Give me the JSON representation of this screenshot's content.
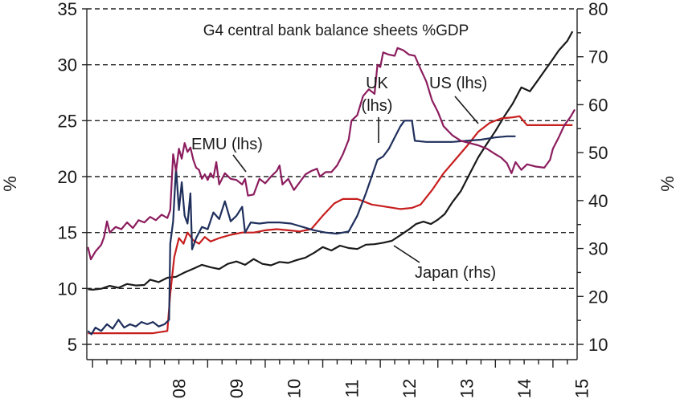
{
  "chart_data": {
    "type": "line",
    "title": "G4 central bank balance sheets %GDP",
    "ylabel_left": "%",
    "ylabel_right": "%",
    "ylim_left": [
      5,
      35
    ],
    "ylim_right": [
      10,
      80
    ],
    "yticks_left": [
      5,
      10,
      15,
      20,
      25,
      30,
      35
    ],
    "yticks_right": [
      10,
      20,
      30,
      40,
      50,
      60,
      70,
      80
    ],
    "ytick_labels_left": [
      "5",
      "10",
      "15",
      "20",
      "25",
      "30",
      "35"
    ],
    "ytick_labels_right": [
      "10",
      "20",
      "30",
      "40",
      "50",
      "60",
      "70",
      "80"
    ],
    "x_tick_labels": [
      {
        "label": "08",
        "x": 2008.0
      },
      {
        "label": "09",
        "x": 2009.0
      },
      {
        "label": "10",
        "x": 2010.0
      },
      {
        "label": "11",
        "x": 2011.0
      },
      {
        "label": "12",
        "x": 2012.0
      },
      {
        "label": "13",
        "x": 2013.0
      },
      {
        "label": "14",
        "x": 2014.0
      },
      {
        "label": "15",
        "x": 2015.0
      }
    ],
    "xlim": [
      2006.9,
      2015.42
    ],
    "grid": "horizontal dashed",
    "series": [
      {
        "name": "Japan (rhs)",
        "axis": "right",
        "color": "#1a1a1a",
        "points": [
          [
            2006.92,
            21.5
          ],
          [
            2007.0,
            21.4
          ],
          [
            2007.15,
            21.6
          ],
          [
            2007.3,
            22.2
          ],
          [
            2007.45,
            21.8
          ],
          [
            2007.6,
            22.6
          ],
          [
            2007.75,
            22.3
          ],
          [
            2007.9,
            22.4
          ],
          [
            2008.0,
            23.5
          ],
          [
            2008.15,
            23.0
          ],
          [
            2008.3,
            23.9
          ],
          [
            2008.45,
            24.1
          ],
          [
            2008.6,
            25.0
          ],
          [
            2008.75,
            25.8
          ],
          [
            2008.9,
            26.6
          ],
          [
            2009.05,
            26.1
          ],
          [
            2009.2,
            25.7
          ],
          [
            2009.35,
            26.8
          ],
          [
            2009.5,
            27.3
          ],
          [
            2009.65,
            26.6
          ],
          [
            2009.8,
            27.8
          ],
          [
            2009.95,
            26.8
          ],
          [
            2010.1,
            26.5
          ],
          [
            2010.25,
            27.2
          ],
          [
            2010.4,
            27.0
          ],
          [
            2010.55,
            27.6
          ],
          [
            2010.7,
            28.1
          ],
          [
            2010.85,
            29.1
          ],
          [
            2011.0,
            30.3
          ],
          [
            2011.15,
            29.6
          ],
          [
            2011.3,
            30.6
          ],
          [
            2011.45,
            30.1
          ],
          [
            2011.6,
            29.9
          ],
          [
            2011.75,
            30.8
          ],
          [
            2011.9,
            30.9
          ],
          [
            2012.05,
            31.2
          ],
          [
            2012.2,
            31.6
          ],
          [
            2012.35,
            32.8
          ],
          [
            2012.5,
            34.0
          ],
          [
            2012.62,
            35.1
          ],
          [
            2012.75,
            35.6
          ],
          [
            2012.88,
            35.1
          ],
          [
            2013.0,
            36.0
          ],
          [
            2013.12,
            37.2
          ],
          [
            2013.25,
            39.6
          ],
          [
            2013.4,
            42.0
          ],
          [
            2013.55,
            45.5
          ],
          [
            2013.7,
            49.0
          ],
          [
            2013.85,
            51.8
          ],
          [
            2014.0,
            54.5
          ],
          [
            2014.15,
            57.5
          ],
          [
            2014.3,
            60.2
          ],
          [
            2014.45,
            63.6
          ],
          [
            2014.6,
            62.8
          ],
          [
            2014.72,
            64.8
          ],
          [
            2014.85,
            67.0
          ],
          [
            2014.98,
            69.2
          ],
          [
            2015.1,
            71.3
          ],
          [
            2015.25,
            73.3
          ],
          [
            2015.34,
            75.3
          ]
        ]
      },
      {
        "name": "US (lhs)",
        "axis": "left",
        "color": "#c71e1e",
        "points": [
          [
            2006.92,
            6.0
          ],
          [
            2007.2,
            6.0
          ],
          [
            2007.5,
            6.0
          ],
          [
            2007.8,
            6.0
          ],
          [
            2008.05,
            6.0
          ],
          [
            2008.3,
            6.2
          ],
          [
            2008.35,
            9.5
          ],
          [
            2008.42,
            12.8
          ],
          [
            2008.5,
            14.5
          ],
          [
            2008.58,
            14.0
          ],
          [
            2008.65,
            15.0
          ],
          [
            2008.75,
            14.3
          ],
          [
            2008.85,
            14.0
          ],
          [
            2008.95,
            14.6
          ],
          [
            2009.05,
            14.2
          ],
          [
            2009.2,
            14.5
          ],
          [
            2009.4,
            14.8
          ],
          [
            2009.6,
            15.0
          ],
          [
            2009.8,
            15.0
          ],
          [
            2010.0,
            15.2
          ],
          [
            2010.2,
            15.3
          ],
          [
            2010.4,
            15.2
          ],
          [
            2010.6,
            15.1
          ],
          [
            2010.8,
            15.3
          ],
          [
            2011.0,
            16.5
          ],
          [
            2011.2,
            17.6
          ],
          [
            2011.35,
            18.0
          ],
          [
            2011.6,
            18.0
          ],
          [
            2011.85,
            17.5
          ],
          [
            2012.1,
            17.3
          ],
          [
            2012.35,
            17.1
          ],
          [
            2012.55,
            17.2
          ],
          [
            2012.7,
            17.5
          ],
          [
            2012.9,
            18.8
          ],
          [
            2013.1,
            20.3
          ],
          [
            2013.3,
            21.5
          ],
          [
            2013.5,
            22.7
          ],
          [
            2013.7,
            24.0
          ],
          [
            2013.9,
            24.8
          ],
          [
            2014.1,
            25.2
          ],
          [
            2014.3,
            25.3
          ],
          [
            2014.42,
            25.4
          ],
          [
            2014.55,
            24.6
          ],
          [
            2014.8,
            24.6
          ],
          [
            2015.05,
            24.6
          ],
          [
            2015.34,
            24.6
          ]
        ]
      },
      {
        "name": "UK (lhs)",
        "axis": "left",
        "color": "#1f2f5c",
        "points": [
          [
            2006.92,
            6.2
          ],
          [
            2006.98,
            5.9
          ],
          [
            2007.05,
            6.5
          ],
          [
            2007.15,
            6.2
          ],
          [
            2007.25,
            6.8
          ],
          [
            2007.35,
            6.4
          ],
          [
            2007.45,
            7.2
          ],
          [
            2007.55,
            6.5
          ],
          [
            2007.65,
            6.8
          ],
          [
            2007.75,
            6.6
          ],
          [
            2007.85,
            7.0
          ],
          [
            2007.95,
            6.8
          ],
          [
            2008.05,
            7.0
          ],
          [
            2008.15,
            6.6
          ],
          [
            2008.25,
            6.8
          ],
          [
            2008.33,
            7.2
          ],
          [
            2008.35,
            14.0
          ],
          [
            2008.4,
            16.0
          ],
          [
            2008.45,
            20.8
          ],
          [
            2008.5,
            17.0
          ],
          [
            2008.55,
            19.5
          ],
          [
            2008.6,
            16.5
          ],
          [
            2008.65,
            15.8
          ],
          [
            2008.7,
            18.5
          ],
          [
            2008.73,
            13.5
          ],
          [
            2008.8,
            14.5
          ],
          [
            2008.9,
            15.5
          ],
          [
            2009.0,
            15.3
          ],
          [
            2009.1,
            16.8
          ],
          [
            2009.2,
            16.2
          ],
          [
            2009.3,
            17.8
          ],
          [
            2009.4,
            16.0
          ],
          [
            2009.5,
            16.5
          ],
          [
            2009.6,
            17.3
          ],
          [
            2009.65,
            15.0
          ],
          [
            2009.75,
            15.9
          ],
          [
            2009.9,
            15.8
          ],
          [
            2010.05,
            15.9
          ],
          [
            2010.25,
            15.9
          ],
          [
            2010.45,
            15.8
          ],
          [
            2010.65,
            15.5
          ],
          [
            2010.85,
            15.2
          ],
          [
            2011.05,
            15.0
          ],
          [
            2011.25,
            14.9
          ],
          [
            2011.45,
            15.1
          ],
          [
            2011.6,
            16.5
          ],
          [
            2011.75,
            18.5
          ],
          [
            2011.85,
            20.0
          ],
          [
            2011.95,
            21.5
          ],
          [
            2012.05,
            21.8
          ],
          [
            2012.15,
            22.5
          ],
          [
            2012.25,
            23.5
          ],
          [
            2012.35,
            24.5
          ],
          [
            2012.42,
            25.0
          ],
          [
            2012.55,
            25.0
          ],
          [
            2012.6,
            23.2
          ],
          [
            2012.8,
            23.1
          ],
          [
            2013.0,
            23.1
          ],
          [
            2013.25,
            23.1
          ],
          [
            2013.5,
            23.2
          ],
          [
            2013.75,
            23.3
          ],
          [
            2014.0,
            23.5
          ],
          [
            2014.2,
            23.6
          ],
          [
            2014.35,
            23.6
          ]
        ]
      },
      {
        "name": "EMU (lhs)",
        "axis": "left",
        "color": "#8b1d5e",
        "points": [
          [
            2006.92,
            13.7
          ],
          [
            2006.97,
            12.6
          ],
          [
            2007.05,
            13.3
          ],
          [
            2007.15,
            13.9
          ],
          [
            2007.2,
            14.6
          ],
          [
            2007.25,
            16.0
          ],
          [
            2007.3,
            15.0
          ],
          [
            2007.4,
            15.5
          ],
          [
            2007.5,
            15.3
          ],
          [
            2007.6,
            15.9
          ],
          [
            2007.7,
            15.4
          ],
          [
            2007.8,
            16.1
          ],
          [
            2007.9,
            15.9
          ],
          [
            2008.0,
            16.4
          ],
          [
            2008.1,
            16.1
          ],
          [
            2008.2,
            16.6
          ],
          [
            2008.3,
            16.3
          ],
          [
            2008.35,
            17.0
          ],
          [
            2008.4,
            22.0
          ],
          [
            2008.45,
            20.5
          ],
          [
            2008.5,
            22.5
          ],
          [
            2008.55,
            21.6
          ],
          [
            2008.6,
            23.0
          ],
          [
            2008.65,
            22.2
          ],
          [
            2008.7,
            22.6
          ],
          [
            2008.75,
            21.5
          ],
          [
            2008.8,
            20.8
          ],
          [
            2008.85,
            20.6
          ],
          [
            2008.9,
            19.8
          ],
          [
            2008.95,
            20.2
          ],
          [
            2009.0,
            19.7
          ],
          [
            2009.05,
            20.3
          ],
          [
            2009.1,
            19.9
          ],
          [
            2009.15,
            21.3
          ],
          [
            2009.2,
            19.3
          ],
          [
            2009.3,
            20.3
          ],
          [
            2009.4,
            19.8
          ],
          [
            2009.5,
            19.7
          ],
          [
            2009.6,
            19.3
          ],
          [
            2009.65,
            19.8
          ],
          [
            2009.7,
            18.3
          ],
          [
            2009.8,
            18.4
          ],
          [
            2009.9,
            19.8
          ],
          [
            2010.0,
            19.4
          ],
          [
            2010.1,
            20.0
          ],
          [
            2010.2,
            20.5
          ],
          [
            2010.25,
            21.0
          ],
          [
            2010.3,
            19.3
          ],
          [
            2010.4,
            19.8
          ],
          [
            2010.5,
            18.8
          ],
          [
            2010.6,
            19.5
          ],
          [
            2010.7,
            20.2
          ],
          [
            2010.8,
            20.5
          ],
          [
            2010.9,
            20.7
          ],
          [
            2010.95,
            20.0
          ],
          [
            2011.05,
            20.4
          ],
          [
            2011.15,
            20.4
          ],
          [
            2011.25,
            21.0
          ],
          [
            2011.35,
            22.0
          ],
          [
            2011.45,
            23.3
          ],
          [
            2011.5,
            25.0
          ],
          [
            2011.6,
            25.5
          ],
          [
            2011.7,
            27.2
          ],
          [
            2011.8,
            27.8
          ],
          [
            2011.9,
            27.4
          ],
          [
            2011.95,
            30.0
          ],
          [
            2012.0,
            29.8
          ],
          [
            2012.05,
            31.1
          ],
          [
            2012.15,
            30.9
          ],
          [
            2012.25,
            30.8
          ],
          [
            2012.3,
            31.5
          ],
          [
            2012.4,
            31.3
          ],
          [
            2012.5,
            30.9
          ],
          [
            2012.6,
            30.8
          ],
          [
            2012.7,
            29.6
          ],
          [
            2012.8,
            28.5
          ],
          [
            2012.9,
            26.8
          ],
          [
            2013.0,
            25.8
          ],
          [
            2013.1,
            24.5
          ],
          [
            2013.25,
            23.7
          ],
          [
            2013.4,
            23.2
          ],
          [
            2013.55,
            23.0
          ],
          [
            2013.7,
            22.8
          ],
          [
            2013.85,
            22.5
          ],
          [
            2014.0,
            22.0
          ],
          [
            2014.1,
            21.7
          ],
          [
            2014.2,
            21.2
          ],
          [
            2014.28,
            20.3
          ],
          [
            2014.35,
            21.3
          ],
          [
            2014.45,
            20.6
          ],
          [
            2014.55,
            21.1
          ],
          [
            2014.7,
            20.9
          ],
          [
            2014.85,
            20.8
          ],
          [
            2014.95,
            21.5
          ],
          [
            2015.0,
            22.5
          ],
          [
            2015.1,
            23.5
          ],
          [
            2015.2,
            24.6
          ],
          [
            2015.3,
            25.3
          ],
          [
            2015.38,
            26.0
          ]
        ]
      }
    ],
    "annotations": [
      {
        "text": "EMU (lhs)",
        "name": "annotation-emu"
      },
      {
        "text": "UK",
        "name": "annotation-uk-line1"
      },
      {
        "text": "(lhs)",
        "name": "annotation-uk-line2"
      },
      {
        "text": "US (lhs)",
        "name": "annotation-us"
      },
      {
        "text": "Japan (rhs)",
        "name": "annotation-japan"
      }
    ]
  }
}
